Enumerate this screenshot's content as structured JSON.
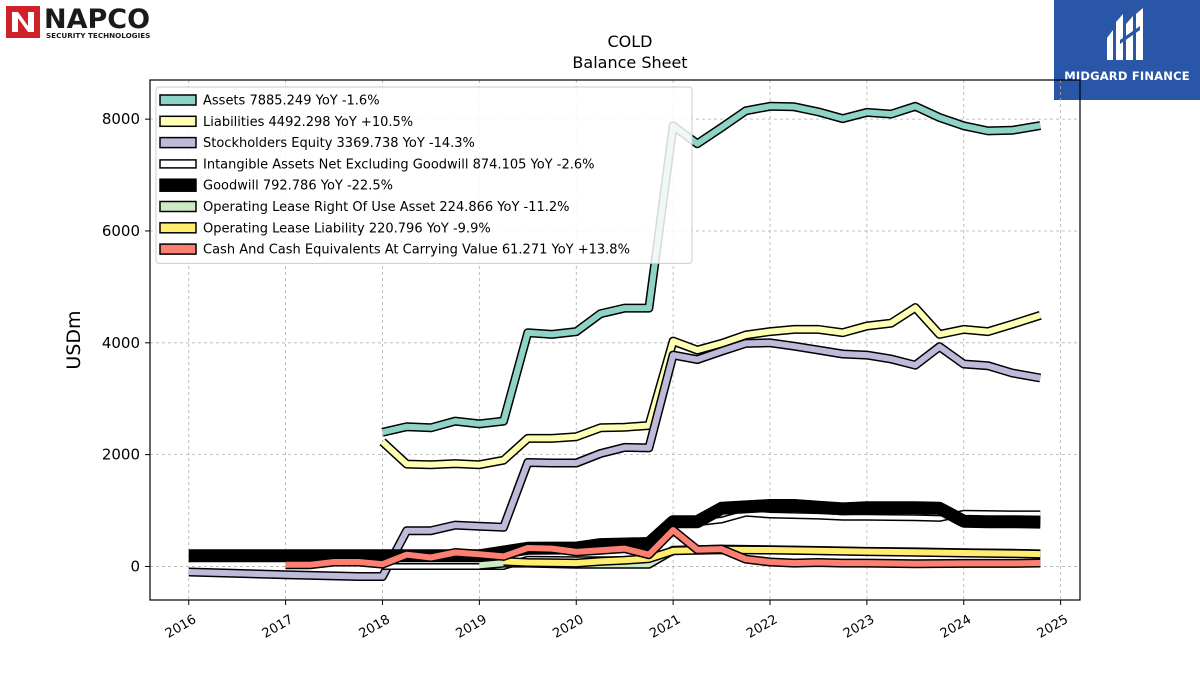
{
  "brand": {
    "left_logo_name": "NAPCO",
    "left_logo_tagline": "SECURITY TECHNOLOGIES",
    "right_logo_name": "MIDGARD FINANCE"
  },
  "chart_data": {
    "type": "line",
    "title": "COLD",
    "subtitle": "Balance  Sheet",
    "xlabel": "",
    "ylabel": "USDm",
    "xlim": [
      2015.6,
      2025.2
    ],
    "ylim": [
      -600,
      8700
    ],
    "yticks": [
      0,
      2000,
      4000,
      6000,
      8000
    ],
    "xticks": [
      2016,
      2017,
      2018,
      2019,
      2020,
      2021,
      2022,
      2023,
      2024,
      2025
    ],
    "grid": true,
    "legend_position": "upper-left",
    "series": [
      {
        "name": "Assets",
        "legend": "Assets  7885.249 YoY -1.6%",
        "color": "#8dd3c7",
        "width": 6,
        "x": [
          2018.0,
          2018.25,
          2018.5,
          2018.75,
          2019.0,
          2019.25,
          2019.5,
          2019.75,
          2020.0,
          2020.25,
          2020.5,
          2020.75,
          2021.0,
          2021.25,
          2021.5,
          2021.75,
          2022.0,
          2022.25,
          2022.5,
          2022.75,
          2023.0,
          2023.25,
          2023.5,
          2023.75,
          2024.0,
          2024.25,
          2024.5,
          2024.79
        ],
        "y": [
          2400,
          2500,
          2480,
          2600,
          2550,
          2600,
          4180,
          4150,
          4200,
          4520,
          4620,
          4620,
          7880,
          7560,
          7850,
          8150,
          8230,
          8220,
          8130,
          8010,
          8120,
          8090,
          8230,
          8030,
          7880,
          7790,
          7800,
          7885
        ]
      },
      {
        "name": "Liabilities",
        "legend": "Liabilities  4492.298 YoY +10.5%",
        "color": "#ffffb3",
        "width": 6,
        "x": [
          2018.0,
          2018.25,
          2018.5,
          2018.75,
          2019.0,
          2019.25,
          2019.5,
          2019.75,
          2020.0,
          2020.25,
          2020.5,
          2020.75,
          2021.0,
          2021.25,
          2021.5,
          2021.75,
          2022.0,
          2022.25,
          2022.5,
          2022.75,
          2023.0,
          2023.25,
          2023.5,
          2023.75,
          2024.0,
          2024.25,
          2024.5,
          2024.79
        ],
        "y": [
          2230,
          1830,
          1820,
          1840,
          1820,
          1900,
          2290,
          2290,
          2320,
          2480,
          2490,
          2520,
          4030,
          3870,
          3990,
          4140,
          4200,
          4240,
          4240,
          4180,
          4300,
          4350,
          4630,
          4150,
          4240,
          4200,
          4330,
          4492
        ]
      },
      {
        "name": "Stockholders Equity",
        "legend": "Stockholders Equity  3369.738 YoY -14.3%",
        "color": "#bebada",
        "width": 6,
        "x": [
          2016.0,
          2017.0,
          2017.75,
          2018.0,
          2018.25,
          2018.5,
          2018.75,
          2019.0,
          2019.25,
          2019.5,
          2019.75,
          2020.0,
          2020.25,
          2020.5,
          2020.75,
          2021.0,
          2021.25,
          2021.5,
          2021.75,
          2022.0,
          2022.25,
          2022.5,
          2022.75,
          2023.0,
          2023.25,
          2023.5,
          2023.75,
          2024.0,
          2024.25,
          2024.5,
          2024.79
        ],
        "y": [
          -100,
          -150,
          -180,
          -180,
          640,
          640,
          740,
          720,
          700,
          1860,
          1850,
          1850,
          2020,
          2130,
          2120,
          3780,
          3700,
          3850,
          3990,
          4000,
          3940,
          3870,
          3800,
          3780,
          3710,
          3600,
          3930,
          3620,
          3590,
          3460,
          3370
        ]
      },
      {
        "name": "Intangible Assets Net Excluding Goodwill",
        "legend": "Intangible Assets Net Excluding Goodwill  874.105 YoY -2.6%",
        "color": "#ffffff",
        "width": 4,
        "x": [
          2018.0,
          2019.0,
          2019.25,
          2019.5,
          2020.0,
          2020.5,
          2020.75,
          2021.0,
          2021.25,
          2021.5,
          2021.75,
          2022.0,
          2022.5,
          2022.75,
          2023.0,
          2023.5,
          2023.75,
          2024.0,
          2024.5,
          2024.79
        ],
        "y": [
          0,
          0,
          0,
          130,
          120,
          120,
          120,
          800,
          780,
          830,
          950,
          920,
          900,
          880,
          880,
          870,
          860,
          950,
          940,
          940
        ]
      },
      {
        "name": "Goodwill",
        "legend": "Goodwill  792.786 YoY -22.5%",
        "color": "#000000",
        "width": 10,
        "x": [
          2016.0,
          2017.0,
          2018.0,
          2019.0,
          2019.5,
          2020.0,
          2020.25,
          2020.75,
          2021.0,
          2021.25,
          2021.5,
          2022.0,
          2022.25,
          2022.5,
          2022.75,
          2023.0,
          2023.5,
          2023.75,
          2024.0,
          2024.25,
          2024.5,
          2024.79
        ],
        "y": [
          190,
          190,
          190,
          190,
          325,
          330,
          390,
          410,
          800,
          800,
          1040,
          1090,
          1090,
          1060,
          1030,
          1050,
          1050,
          1040,
          810,
          800,
          800,
          793
        ]
      },
      {
        "name": "Operating Lease Right Of Use Asset",
        "legend": "Operating Lease Right Of Use Asset  224.866 YoY -11.2%",
        "color": "#ccebc5",
        "width": 6,
        "x": [
          2019.0,
          2019.25,
          2019.5,
          2020.0,
          2020.25,
          2020.5,
          2020.75,
          2021.0,
          2021.5,
          2022.0,
          2022.5,
          2023.0,
          2023.5,
          2024.0,
          2024.5,
          2024.79
        ],
        "y": [
          20,
          60,
          60,
          40,
          40,
          40,
          40,
          290,
          310,
          300,
          285,
          270,
          260,
          245,
          235,
          225
        ]
      },
      {
        "name": "Operating Lease Liability",
        "legend": "Operating Lease Liability  220.796 YoY -9.9%",
        "color": "#ffed6f",
        "width": 6,
        "x": [
          2019.25,
          2019.5,
          2020.0,
          2020.25,
          2020.5,
          2020.75,
          2021.0,
          2021.5,
          2022.0,
          2022.5,
          2023.0,
          2023.5,
          2024.0,
          2024.5,
          2024.79
        ],
        "y": [
          90,
          70,
          60,
          90,
          110,
          140,
          280,
          300,
          295,
          280,
          265,
          255,
          240,
          230,
          221
        ]
      },
      {
        "name": "Cash And Cash Equivalents At Carrying Value",
        "legend": "Cash And Cash Equivalents At Carrying Value  61.271 YoY +13.8%",
        "color": "#fb8072",
        "width": 6,
        "x": [
          2017.0,
          2017.25,
          2017.5,
          2017.75,
          2018.0,
          2018.25,
          2018.5,
          2018.75,
          2019.0,
          2019.25,
          2019.5,
          2019.75,
          2020.0,
          2020.25,
          2020.5,
          2020.75,
          2021.0,
          2021.25,
          2021.5,
          2021.75,
          2022.0,
          2022.25,
          2022.5,
          2022.75,
          2023.0,
          2023.5,
          2024.0,
          2024.25,
          2024.5,
          2024.79
        ],
        "y": [
          30,
          30,
          80,
          80,
          40,
          210,
          160,
          250,
          220,
          180,
          330,
          320,
          260,
          290,
          320,
          210,
          650,
          300,
          310,
          130,
          80,
          60,
          70,
          60,
          60,
          50,
          55,
          55,
          55,
          61
        ]
      }
    ]
  }
}
